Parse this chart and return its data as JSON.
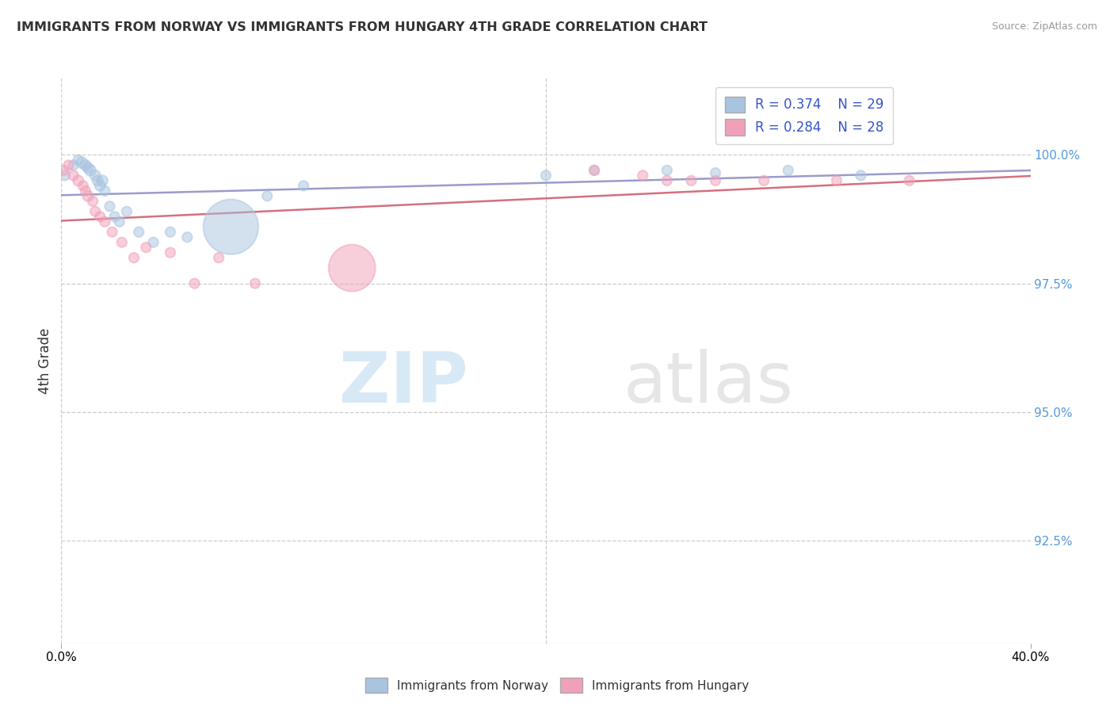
{
  "title": "IMMIGRANTS FROM NORWAY VS IMMIGRANTS FROM HUNGARY 4TH GRADE CORRELATION CHART",
  "source": "Source: ZipAtlas.com",
  "ylabel": "4th Grade",
  "yticks": [
    92.5,
    95.0,
    97.5,
    100.0
  ],
  "ytick_labels": [
    "92.5%",
    "95.0%",
    "97.5%",
    "100.0%"
  ],
  "xmin": 0.0,
  "xmax": 40.0,
  "ymin": 90.5,
  "ymax": 101.5,
  "norway_color": "#a8c4e0",
  "hungary_color": "#f0a0b8",
  "trendline_norway_color": "#9090c8",
  "trendline_hungary_color": "#d06070",
  "legend_R_norway": "R = 0.374",
  "legend_N_norway": "N = 29",
  "legend_R_hungary": "R = 0.284",
  "legend_N_hungary": "N = 28",
  "norway_x": [
    0.15,
    0.5,
    0.7,
    0.85,
    1.0,
    1.1,
    1.2,
    1.4,
    1.5,
    1.6,
    1.7,
    1.8,
    2.0,
    2.2,
    2.4,
    2.7,
    3.2,
    3.8,
    4.5,
    5.2,
    7.0,
    8.5,
    10.0,
    20.0,
    22.0,
    25.0,
    27.0,
    30.0,
    33.0
  ],
  "norway_y": [
    99.6,
    99.8,
    99.9,
    99.85,
    99.8,
    99.75,
    99.7,
    99.6,
    99.5,
    99.4,
    99.5,
    99.3,
    99.0,
    98.8,
    98.7,
    98.9,
    98.5,
    98.3,
    98.5,
    98.4,
    98.6,
    99.2,
    99.4,
    99.6,
    99.7,
    99.7,
    99.65,
    99.7,
    99.6
  ],
  "norway_size": [
    80,
    80,
    80,
    100,
    90,
    90,
    100,
    90,
    90,
    90,
    90,
    80,
    80,
    80,
    80,
    80,
    80,
    80,
    80,
    80,
    2500,
    80,
    80,
    80,
    80,
    80,
    80,
    80,
    80
  ],
  "hungary_x": [
    0.1,
    0.3,
    0.5,
    0.7,
    0.9,
    1.0,
    1.1,
    1.3,
    1.4,
    1.6,
    1.8,
    2.1,
    2.5,
    3.0,
    3.5,
    4.5,
    5.5,
    6.5,
    8.0,
    12.0,
    22.0,
    24.0,
    25.0,
    26.0,
    27.0,
    29.0,
    32.0,
    35.0
  ],
  "hungary_y": [
    99.7,
    99.8,
    99.6,
    99.5,
    99.4,
    99.3,
    99.2,
    99.1,
    98.9,
    98.8,
    98.7,
    98.5,
    98.3,
    98.0,
    98.2,
    98.1,
    97.5,
    98.0,
    97.5,
    97.8,
    99.7,
    99.6,
    99.5,
    99.5,
    99.5,
    99.5,
    99.5,
    99.5
  ],
  "hungary_size": [
    80,
    80,
    80,
    90,
    80,
    80,
    90,
    80,
    80,
    80,
    80,
    80,
    80,
    80,
    80,
    80,
    80,
    80,
    80,
    1800,
    80,
    80,
    80,
    80,
    80,
    80,
    80,
    80
  ],
  "background_color": "#ffffff",
  "grid_color": "#cccccc",
  "watermark_zip": "ZIP",
  "watermark_atlas": "atlas"
}
